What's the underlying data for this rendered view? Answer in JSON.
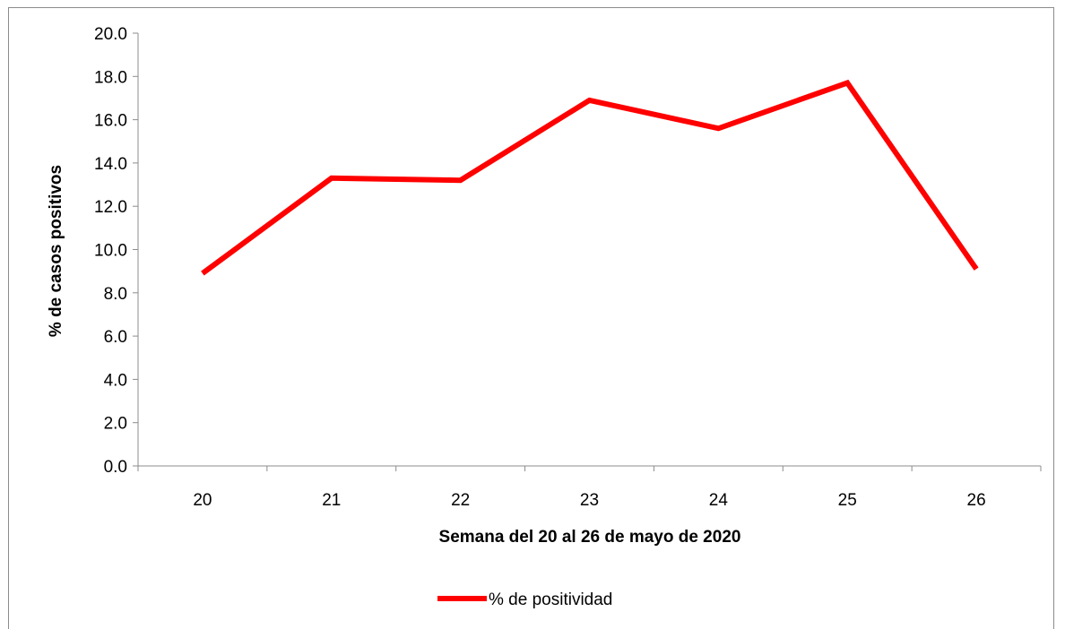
{
  "chart_data": {
    "type": "line",
    "title": "",
    "categories": [
      "20",
      "21",
      "22",
      "23",
      "24",
      "25",
      "26"
    ],
    "series": [
      {
        "name": "% de positividad",
        "values": [
          8.9,
          13.3,
          13.2,
          16.9,
          15.6,
          17.7,
          9.1
        ],
        "color": "#ff0000"
      }
    ],
    "y_ticks": [
      "0.0",
      "2.0",
      "4.0",
      "6.0",
      "8.0",
      "10.0",
      "12.0",
      "14.0",
      "16.0",
      "18.0",
      "20.0"
    ],
    "ylim": [
      0,
      20
    ],
    "xlabel": "Semana del 20 al 26 de mayo de 2020",
    "ylabel": "% de casos positivos",
    "grid": false,
    "legend_position": "bottom"
  }
}
